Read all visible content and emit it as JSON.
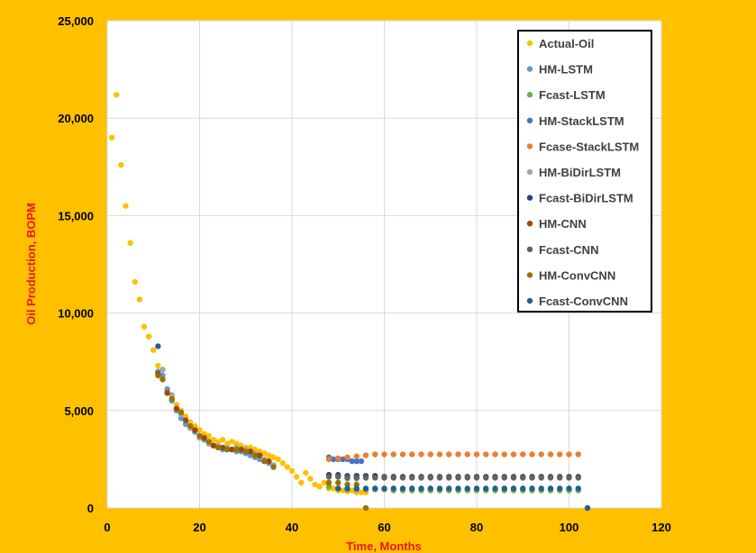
{
  "chart_data": {
    "type": "scatter",
    "title": "",
    "xlabel": "Time, Months",
    "ylabel": "Oil Production, BOPM",
    "xlim": [
      0,
      120
    ],
    "ylim": [
      0,
      25000
    ],
    "xticks": [
      0,
      20,
      40,
      60,
      80,
      100,
      120
    ],
    "yticks": [
      0,
      5000,
      10000,
      15000,
      20000,
      25000
    ],
    "xtick_labels": [
      "0",
      "20",
      "40",
      "60",
      "80",
      "100",
      "120"
    ],
    "ytick_labels": [
      "0",
      "5,000",
      "10,000",
      "15,000",
      "20,000",
      "25,000"
    ],
    "grid": true,
    "legend_position": "top-right",
    "series": [
      {
        "name": "Actual-Oil",
        "color": "#FFC000",
        "x": [
          1,
          2,
          3,
          4,
          5,
          6,
          7,
          8,
          9,
          10,
          11,
          12,
          13,
          14,
          15,
          16,
          17,
          18,
          19,
          20,
          21,
          22,
          23,
          24,
          25,
          26,
          27,
          28,
          29,
          30,
          31,
          32,
          33,
          34,
          35,
          36,
          37,
          38,
          39,
          40,
          41,
          42,
          43,
          44,
          45,
          46,
          47,
          48,
          49,
          50,
          51,
          52,
          53,
          54,
          55,
          56
        ],
        "y": [
          19000,
          21200,
          17600,
          15500,
          13600,
          11600,
          10700,
          9300,
          8800,
          8100,
          7300,
          6600,
          6000,
          5600,
          5300,
          5000,
          4700,
          4400,
          4200,
          4000,
          3800,
          3700,
          3500,
          3400,
          3500,
          3300,
          3400,
          3300,
          3200,
          3100,
          3100,
          3000,
          2900,
          2800,
          2700,
          2600,
          2500,
          2300,
          2100,
          1900,
          1600,
          1300,
          1800,
          1500,
          1200,
          1100,
          1300,
          1000,
          1000,
          900,
          900,
          850,
          900,
          800,
          800,
          800
        ]
      },
      {
        "name": "HM-LSTM",
        "color": "#5B9BD5",
        "x": [
          11,
          12,
          13,
          14,
          15,
          16,
          17,
          18,
          19,
          20,
          21,
          22,
          23,
          24,
          25,
          26,
          27,
          28,
          29,
          30,
          31,
          32,
          33,
          34,
          35,
          36
        ],
        "y": [
          7000,
          6800,
          6100,
          5500,
          5000,
          4600,
          4300,
          4100,
          3900,
          3700,
          3500,
          3300,
          3200,
          3100,
          3000,
          3000,
          3000,
          2900,
          2900,
          2800,
          2700,
          2600,
          2500,
          2400,
          2300,
          2200
        ]
      },
      {
        "name": "Fcast-LSTM",
        "color": "#70AD47",
        "x": [
          48,
          50,
          52,
          54,
          56,
          58,
          60,
          62,
          64,
          66,
          68,
          70,
          72,
          74,
          76,
          78,
          80,
          82,
          84,
          86,
          88,
          90,
          92,
          94,
          96,
          98,
          100,
          102
        ],
        "y": [
          1100,
          1000,
          950,
          950,
          950,
          950,
          950,
          900,
          900,
          900,
          900,
          900,
          900,
          900,
          900,
          900,
          900,
          900,
          900,
          900,
          900,
          900,
          900,
          900,
          900,
          900,
          900,
          900
        ]
      },
      {
        "name": "HM-StackLSTM",
        "color": "#4472C4",
        "x": [
          48,
          49,
          50,
          51,
          52,
          53,
          54,
          55
        ],
        "y": [
          2600,
          2500,
          2500,
          2500,
          2500,
          2400,
          2400,
          2400
        ]
      },
      {
        "name": "Fcase-StackLSTM",
        "color": "#ED7D31",
        "x": [
          48,
          50,
          52,
          54,
          56,
          58,
          60,
          62,
          64,
          66,
          68,
          70,
          72,
          74,
          76,
          78,
          80,
          82,
          84,
          86,
          88,
          90,
          92,
          94,
          96,
          98,
          100,
          102
        ],
        "y": [
          2500,
          2550,
          2600,
          2650,
          2700,
          2750,
          2750,
          2750,
          2750,
          2750,
          2750,
          2750,
          2750,
          2750,
          2750,
          2750,
          2750,
          2750,
          2750,
          2750,
          2750,
          2750,
          2750,
          2750,
          2750,
          2750,
          2750,
          2750
        ]
      },
      {
        "name": "HM-BiDirLSTM",
        "color": "#A5A5A5",
        "x": [
          12,
          14,
          16,
          18,
          20,
          22,
          24,
          26,
          28,
          30,
          32,
          34,
          36,
          48,
          50,
          52,
          54
        ],
        "y": [
          7100,
          5800,
          4800,
          4100,
          3600,
          3300,
          3200,
          3100,
          3100,
          3000,
          2800,
          2500,
          2200,
          1700,
          1600,
          1500,
          1500
        ]
      },
      {
        "name": "Fcast-BiDirLSTM",
        "color": "#264478",
        "x": [
          48,
          50,
          52,
          54,
          56,
          58,
          60,
          62,
          64,
          66,
          68,
          70,
          72,
          74,
          76,
          78,
          80,
          82,
          84,
          86,
          88,
          90,
          92,
          94,
          96,
          98,
          100,
          102
        ],
        "y": [
          1700,
          1700,
          1650,
          1650,
          1650,
          1650,
          1600,
          1600,
          1600,
          1600,
          1600,
          1600,
          1600,
          1600,
          1600,
          1600,
          1600,
          1600,
          1600,
          1600,
          1600,
          1600,
          1600,
          1600,
          1600,
          1600,
          1600,
          1600
        ]
      },
      {
        "name": "HM-CNN",
        "color": "#9E480E",
        "x": [
          11,
          13,
          15,
          17,
          19,
          21,
          23,
          25,
          27,
          29,
          31,
          33,
          35
        ],
        "y": [
          6900,
          5900,
          5100,
          4500,
          4000,
          3600,
          3200,
          3100,
          3000,
          3000,
          2900,
          2700,
          2400
        ]
      },
      {
        "name": "Fcast-CNN",
        "color": "#636363",
        "x": [
          48,
          50,
          52,
          54,
          56,
          58,
          60,
          62,
          64,
          66,
          68,
          70,
          72,
          74,
          76,
          78,
          80,
          82,
          84,
          86,
          88,
          90,
          92,
          94,
          96,
          98,
          100,
          102
        ],
        "y": [
          1600,
          1600,
          1550,
          1550,
          1550,
          1550,
          1550,
          1550,
          1550,
          1550,
          1550,
          1550,
          1550,
          1550,
          1550,
          1550,
          1550,
          1550,
          1550,
          1550,
          1550,
          1550,
          1550,
          1550,
          1550,
          1550,
          1550,
          1550
        ]
      },
      {
        "name": "HM-ConvCNN",
        "color": "#997300",
        "x": [
          11,
          12,
          14,
          16,
          18,
          20,
          22,
          24,
          26,
          28,
          30,
          32,
          34,
          36,
          48,
          50,
          52,
          54,
          56
        ],
        "y": [
          6800,
          6600,
          5600,
          4900,
          4200,
          3700,
          3400,
          3100,
          3000,
          3000,
          2900,
          2700,
          2400,
          2100,
          1300,
          1300,
          1200,
          1200,
          0
        ]
      },
      {
        "name": "Fcast-ConvCNN",
        "color": "#255E91",
        "x": [
          11,
          50,
          52,
          54,
          56,
          58,
          60,
          62,
          64,
          66,
          68,
          70,
          72,
          74,
          76,
          78,
          80,
          82,
          84,
          86,
          88,
          90,
          92,
          94,
          96,
          98,
          100,
          102,
          104
        ],
        "y": [
          8300,
          1000,
          1000,
          1000,
          1000,
          1000,
          1000,
          1000,
          1000,
          1000,
          1000,
          1000,
          1000,
          1000,
          1000,
          1000,
          1000,
          1000,
          1000,
          1000,
          1000,
          1000,
          1000,
          1000,
          1000,
          1000,
          1000,
          1000,
          0
        ]
      }
    ]
  }
}
